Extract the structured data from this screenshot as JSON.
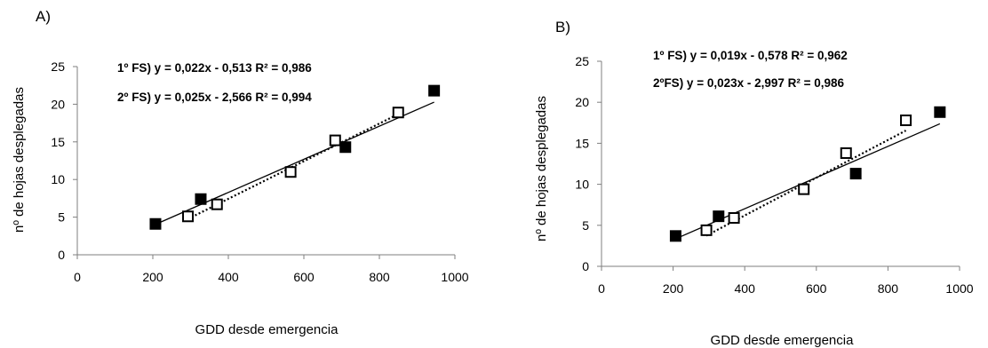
{
  "chart_data": [
    {
      "type": "scatter",
      "panel_label": "A)",
      "xlabel": "GDD desde emergencia",
      "ylabel": "nº de hojas desplegadas",
      "xlim": [
        0,
        1000
      ],
      "ylim": [
        0,
        25
      ],
      "xticks": [
        0,
        200,
        400,
        600,
        800,
        1000
      ],
      "yticks": [
        0,
        5,
        10,
        15,
        20,
        25
      ],
      "grid": false,
      "series": [
        {
          "marker": "filled-square",
          "line": "solid",
          "color": "#000000",
          "x": [
            207,
            327,
            710,
            945
          ],
          "y": [
            4.1,
            7.4,
            14.3,
            21.8
          ],
          "trend": {
            "slope": 0.022,
            "intercept": -0.513,
            "x_range": [
              207,
              945
            ]
          }
        },
        {
          "marker": "open-square",
          "line": "dotted",
          "color": "#000000",
          "x": [
            293,
            370,
            565,
            683,
            850
          ],
          "y": [
            5.1,
            6.7,
            11.0,
            15.2,
            18.9
          ],
          "trend": {
            "slope": 0.025,
            "intercept": -2.566,
            "x_range": [
              293,
              850
            ]
          }
        }
      ],
      "equations": [
        "1º FS) y = 0,022x - 0,513  R² = 0,986",
        "2º FS) y = 0,025x - 2,566  R² = 0,994"
      ]
    },
    {
      "type": "scatter",
      "panel_label": "B)",
      "xlabel": "GDD desde emergencia",
      "ylabel": "nº de hojas desplegadas",
      "xlim": [
        0,
        1000
      ],
      "ylim": [
        0,
        25
      ],
      "xticks": [
        0,
        200,
        400,
        600,
        800,
        1000
      ],
      "yticks": [
        0,
        5,
        10,
        15,
        20,
        25
      ],
      "grid": false,
      "series": [
        {
          "marker": "filled-square",
          "line": "solid",
          "color": "#000000",
          "x": [
            207,
            327,
            710,
            945
          ],
          "y": [
            3.7,
            6.1,
            11.3,
            18.8
          ],
          "trend": {
            "slope": 0.019,
            "intercept": -0.578,
            "x_range": [
              207,
              945
            ]
          }
        },
        {
          "marker": "open-square",
          "line": "dotted",
          "color": "#000000",
          "x": [
            293,
            370,
            565,
            683,
            850
          ],
          "y": [
            4.4,
            5.9,
            9.4,
            13.8,
            17.8
          ],
          "trend": {
            "slope": 0.023,
            "intercept": -2.997,
            "x_range": [
              293,
              850
            ]
          }
        }
      ],
      "equations": [
        "1º FS) y = 0,019x - 0,578  R² = 0,962",
        "2ºFS) y = 0,023x - 2,997  R² = 0,986"
      ]
    }
  ]
}
